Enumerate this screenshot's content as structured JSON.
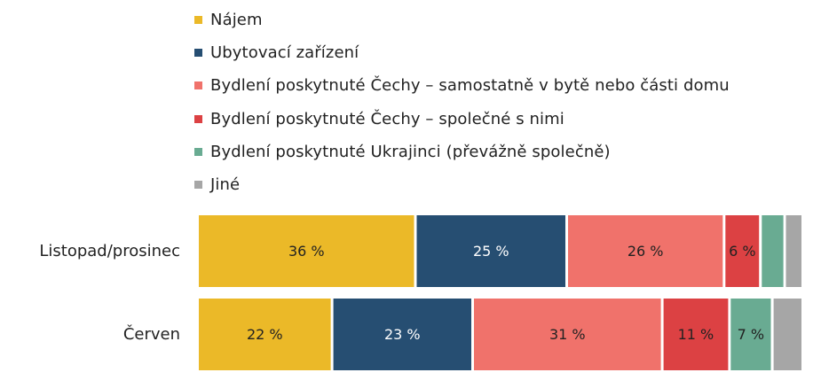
{
  "chart_data": {
    "type": "bar",
    "orientation": "horizontal",
    "stacked": true,
    "percent": true,
    "title": "",
    "xlabel": "",
    "ylabel": "",
    "legend_position": "top",
    "grid": false,
    "categories": [
      "Listopad/prosinec",
      "Červen"
    ],
    "series": [
      {
        "name": "Nájem",
        "color": "#ebb928",
        "values": [
          36,
          22
        ],
        "labels": [
          "36 %",
          "22 %"
        ],
        "label_color": "#222222"
      },
      {
        "name": "Ubytovací zařízení",
        "color": "#264e72",
        "values": [
          25,
          23
        ],
        "labels": [
          "25 %",
          "23 %"
        ],
        "label_color": "#ffffff"
      },
      {
        "name": "Bydlení poskytnuté Čechy – samostatně v bytě nebo části domu",
        "color": "#f0726b",
        "values": [
          26,
          31
        ],
        "labels": [
          "26 %",
          "31 %"
        ],
        "label_color": "#222222"
      },
      {
        "name": "Bydlení poskytnuté Čechy – společné s nimi",
        "color": "#dc4143",
        "values": [
          6,
          11
        ],
        "labels": [
          "6 %",
          "11 %"
        ],
        "label_color": "#222222"
      },
      {
        "name": "Bydlení poskytnuté Ukrajinci (převážně společně)",
        "color": "#69ab92",
        "values": [
          4,
          7
        ],
        "labels": [
          "",
          "7 %"
        ],
        "label_color": "#222222"
      },
      {
        "name": "Jiné",
        "color": "#a6a6a6",
        "values": [
          3,
          5
        ],
        "labels": [
          "",
          ""
        ],
        "label_color": "#222222"
      }
    ]
  }
}
